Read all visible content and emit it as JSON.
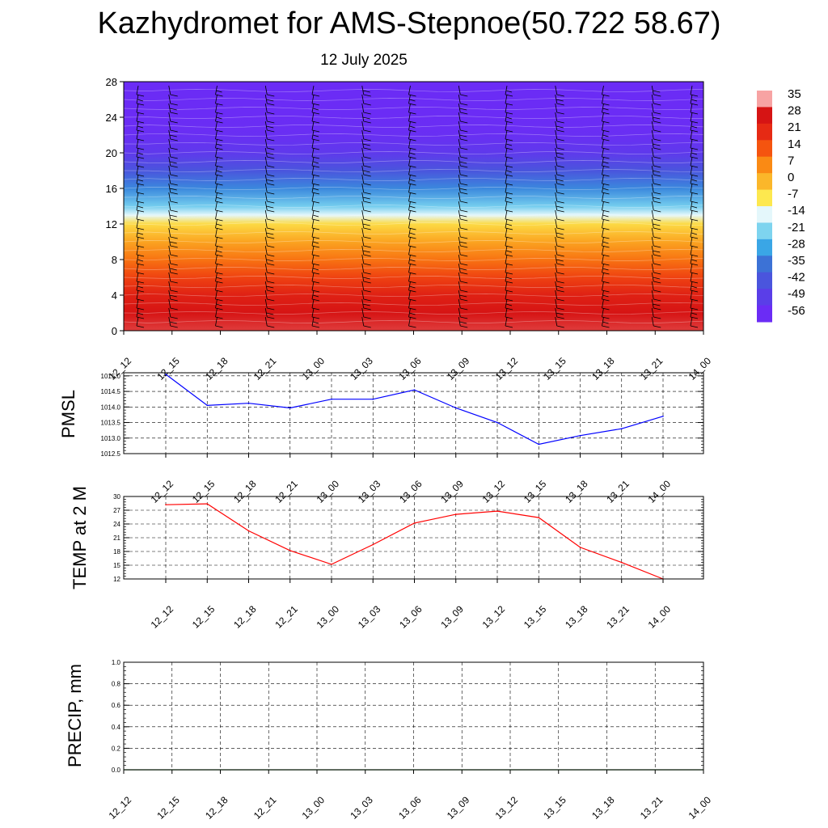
{
  "header": {
    "title": "Kazhydromet for AMS-Stepnoe(50.722 58.67)",
    "subtitle": "12 July 2025"
  },
  "chart_data": [
    {
      "type": "heatmap",
      "panel": "temperature-wind-cross-section",
      "x_tick_labels": [
        "12_12",
        "12_15",
        "12_18",
        "12_21",
        "13_00",
        "13_03",
        "13_06",
        "13_09",
        "13_12",
        "13_15",
        "13_18",
        "13_21",
        "14_00"
      ],
      "y_ticks": [
        0,
        4,
        8,
        12,
        16,
        20,
        24,
        28
      ],
      "ylim": [
        0,
        28
      ],
      "colorbar": {
        "labels": [
          "35",
          "28",
          "21",
          "14",
          "7",
          "0",
          "-7",
          "-14",
          "-21",
          "-28",
          "-35",
          "-42",
          "-49",
          "-56"
        ],
        "colors": [
          "#f7a3a3",
          "#d61414",
          "#e62a14",
          "#f5540f",
          "#fa8a14",
          "#fbb72a",
          "#fde84f",
          "#e4f7fb",
          "#7ed4ef",
          "#3aa6e6",
          "#3c72d6",
          "#4a55dd",
          "#5a3ee8",
          "#6b2cf5"
        ]
      },
      "rows": [
        {
          "y": 0,
          "value": 30
        },
        {
          "y": 2,
          "value": 28
        },
        {
          "y": 4,
          "value": 24
        },
        {
          "y": 6,
          "value": 17
        },
        {
          "y": 8,
          "value": 10
        },
        {
          "y": 10,
          "value": 3
        },
        {
          "y": 12,
          "value": -5
        },
        {
          "y": 13,
          "value": -14
        },
        {
          "y": 14,
          "value": -22
        },
        {
          "y": 16,
          "value": -32
        },
        {
          "y": 18,
          "value": -42
        },
        {
          "y": 20,
          "value": -51
        },
        {
          "y": 22,
          "value": -55
        },
        {
          "y": 24,
          "value": -57
        },
        {
          "y": 28,
          "value": -58
        }
      ]
    },
    {
      "type": "line",
      "panel": "pmsl",
      "ylabel": "PMSL",
      "x": [
        "12_12",
        "12_15",
        "12_18",
        "12_21",
        "13_00",
        "13_03",
        "13_06",
        "13_09",
        "13_12",
        "13_15",
        "13_18",
        "13_21",
        "14_00"
      ],
      "y_ticks": [
        "1012.5",
        "1013.0",
        "1013.5",
        "1014.0",
        "1014.5",
        "1015.0"
      ],
      "ylim": [
        1012.5,
        1015.1
      ],
      "color": "#0000ff",
      "values": [
        1015.05,
        1014.05,
        1014.12,
        1013.97,
        1014.25,
        1014.25,
        1014.55,
        1013.97,
        1013.5,
        1012.8,
        1013.08,
        1013.3,
        1013.7
      ]
    },
    {
      "type": "line",
      "panel": "temp2m",
      "ylabel": "TEMP at 2 M",
      "x": [
        "12_12",
        "12_15",
        "12_18",
        "12_21",
        "13_00",
        "13_03",
        "13_06",
        "13_09",
        "13_12",
        "13_15",
        "13_18",
        "13_21",
        "14_00"
      ],
      "y_ticks": [
        "12",
        "15",
        "18",
        "21",
        "24",
        "27",
        "30"
      ],
      "ylim": [
        12,
        30
      ],
      "color": "#ff0000",
      "values": [
        28.2,
        28.4,
        22.5,
        18.2,
        15.2,
        19.5,
        24.2,
        26.1,
        26.8,
        25.4,
        18.9,
        15.6,
        12.0
      ]
    },
    {
      "type": "bar",
      "panel": "precip",
      "ylabel": "PRECIP, mm",
      "x": [
        "12_12",
        "12_15",
        "12_18",
        "12_21",
        "13_00",
        "13_03",
        "13_06",
        "13_09",
        "13_12",
        "13_15",
        "13_18",
        "13_21",
        "14_00"
      ],
      "y_ticks": [
        "0.0",
        "0.2",
        "0.4",
        "0.6",
        "0.8",
        "1.0"
      ],
      "ylim": [
        0,
        1.0
      ],
      "color": "#006400",
      "values": [
        0,
        0,
        0,
        0,
        0,
        0,
        0,
        0,
        0,
        0,
        0,
        0,
        0
      ]
    }
  ]
}
